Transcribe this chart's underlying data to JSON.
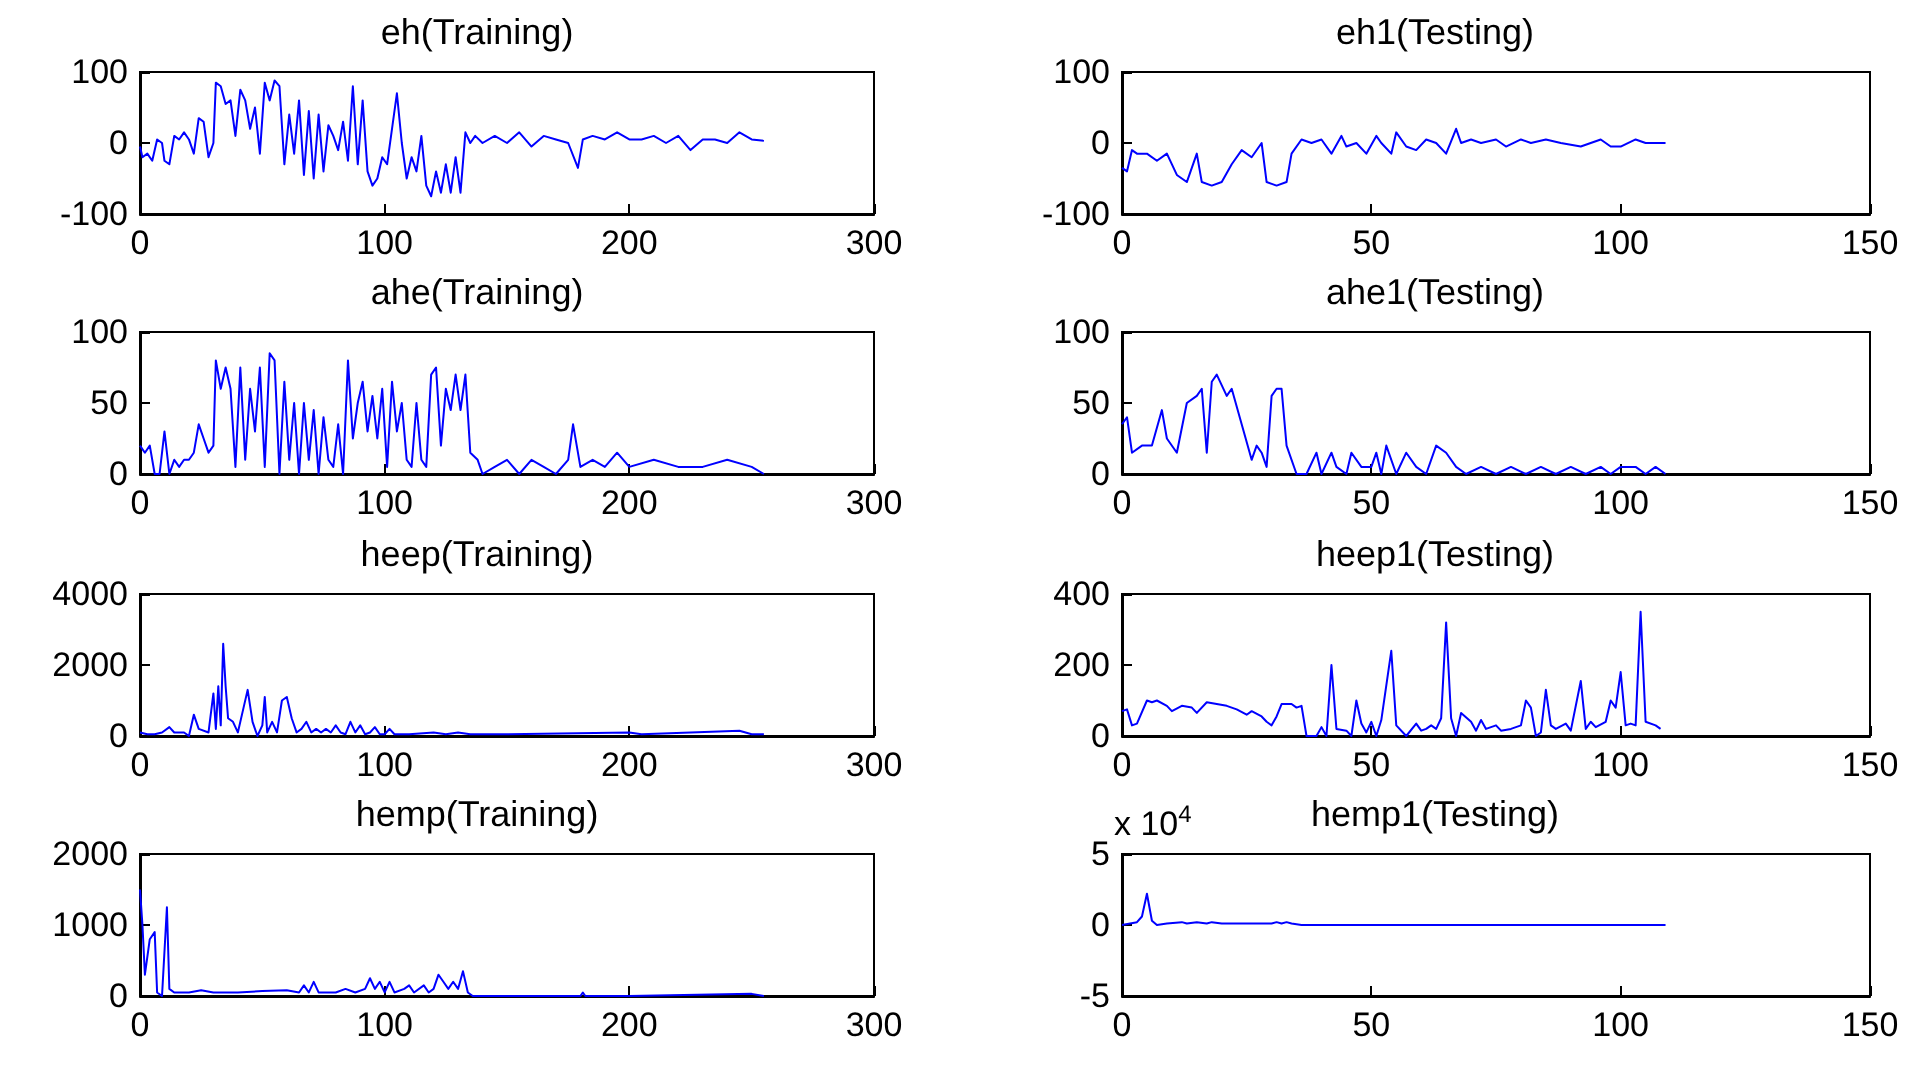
{
  "chart_data": [
    {
      "type": "line",
      "title": "eh(Training)",
      "color": "#0000ff",
      "xlim": [
        0,
        300
      ],
      "xticks": [
        0,
        100,
        200,
        300
      ],
      "ylim": [
        -100,
        100
      ],
      "yticks": [
        -100,
        0,
        100
      ],
      "x": [
        0,
        1,
        3,
        5,
        7,
        9,
        10,
        12,
        14,
        16,
        18,
        20,
        22,
        24,
        26,
        28,
        30,
        31,
        33,
        35,
        37,
        39,
        41,
        43,
        45,
        47,
        49,
        51,
        53,
        55,
        57,
        59,
        61,
        63,
        65,
        67,
        69,
        71,
        73,
        75,
        77,
        79,
        81,
        83,
        85,
        87,
        89,
        91,
        93,
        95,
        97,
        99,
        101,
        103,
        105,
        107,
        109,
        111,
        113,
        115,
        117,
        119,
        121,
        123,
        125,
        127,
        129,
        131,
        133,
        135,
        137,
        140,
        145,
        150,
        155,
        160,
        165,
        170,
        175,
        179,
        181,
        185,
        190,
        195,
        200,
        205,
        210,
        215,
        220,
        225,
        230,
        235,
        240,
        245,
        250,
        255
      ],
      "values": [
        -5,
        -20,
        -15,
        -25,
        5,
        0,
        -25,
        -30,
        10,
        5,
        15,
        5,
        -15,
        35,
        30,
        -20,
        0,
        85,
        80,
        55,
        60,
        10,
        75,
        60,
        20,
        50,
        -15,
        85,
        60,
        88,
        80,
        -30,
        40,
        -15,
        60,
        -45,
        45,
        -50,
        40,
        -40,
        25,
        10,
        -10,
        30,
        -25,
        80,
        -30,
        60,
        -40,
        -60,
        -50,
        -20,
        -30,
        20,
        70,
        0,
        -50,
        -20,
        -40,
        10,
        -60,
        -75,
        -40,
        -70,
        -30,
        -70,
        -20,
        -70,
        15,
        0,
        10,
        0,
        10,
        0,
        15,
        -5,
        10,
        5,
        0,
        -35,
        5,
        10,
        5,
        15,
        5,
        5,
        10,
        0,
        10,
        -10,
        5,
        5,
        0,
        15,
        5,
        3
      ]
    },
    {
      "type": "line",
      "title": "eh1(Testing)",
      "color": "#0000ff",
      "xlim": [
        0,
        150
      ],
      "xticks": [
        0,
        50,
        100,
        150
      ],
      "ylim": [
        -100,
        100
      ],
      "yticks": [
        -100,
        0,
        100
      ],
      "x": [
        0,
        1,
        2,
        3,
        5,
        7,
        9,
        11,
        13,
        15,
        16,
        18,
        20,
        22,
        24,
        26,
        28,
        29,
        31,
        33,
        34,
        36,
        38,
        40,
        42,
        44,
        45,
        47,
        49,
        51,
        52,
        54,
        55,
        57,
        59,
        61,
        63,
        65,
        67,
        68,
        70,
        72,
        75,
        77,
        80,
        82,
        85,
        88,
        92,
        96,
        98,
        100,
        103,
        105,
        107,
        109
      ],
      "values": [
        -35,
        -40,
        -10,
        -15,
        -15,
        -25,
        -15,
        -45,
        -55,
        -15,
        -55,
        -60,
        -55,
        -30,
        -10,
        -20,
        0,
        -55,
        -60,
        -55,
        -15,
        5,
        0,
        5,
        -15,
        10,
        -5,
        0,
        -15,
        10,
        0,
        -15,
        15,
        -5,
        -10,
        5,
        0,
        -15,
        20,
        0,
        5,
        0,
        5,
        -5,
        5,
        0,
        5,
        0,
        -5,
        5,
        -5,
        -5,
        5,
        0,
        0,
        0
      ]
    },
    {
      "type": "line",
      "title": "ahe(Training)",
      "color": "#0000ff",
      "xlim": [
        0,
        300
      ],
      "xticks": [
        0,
        100,
        200,
        300
      ],
      "ylim": [
        0,
        100
      ],
      "yticks": [
        0,
        50,
        100
      ],
      "x": [
        0,
        2,
        4,
        6,
        8,
        10,
        12,
        14,
        16,
        18,
        20,
        22,
        24,
        26,
        28,
        30,
        31,
        33,
        35,
        37,
        39,
        41,
        43,
        45,
        47,
        49,
        51,
        53,
        55,
        57,
        59,
        61,
        63,
        65,
        67,
        69,
        71,
        73,
        75,
        77,
        79,
        81,
        83,
        85,
        87,
        89,
        91,
        93,
        95,
        97,
        99,
        101,
        103,
        105,
        107,
        109,
        111,
        113,
        115,
        117,
        119,
        121,
        123,
        125,
        127,
        129,
        131,
        133,
        135,
        138,
        140,
        145,
        150,
        155,
        160,
        165,
        170,
        175,
        177,
        180,
        185,
        190,
        195,
        200,
        210,
        220,
        230,
        240,
        250,
        255
      ],
      "values": [
        20,
        15,
        20,
        0,
        0,
        30,
        0,
        10,
        5,
        10,
        10,
        15,
        35,
        25,
        15,
        20,
        80,
        60,
        75,
        60,
        5,
        75,
        10,
        60,
        30,
        75,
        5,
        85,
        80,
        0,
        65,
        10,
        50,
        0,
        50,
        10,
        45,
        0,
        40,
        10,
        5,
        35,
        0,
        80,
        25,
        50,
        65,
        30,
        55,
        25,
        60,
        5,
        65,
        30,
        50,
        10,
        5,
        50,
        10,
        5,
        70,
        75,
        20,
        60,
        45,
        70,
        45,
        70,
        15,
        10,
        0,
        5,
        10,
        0,
        10,
        5,
        0,
        10,
        35,
        5,
        10,
        5,
        15,
        5,
        10,
        5,
        5,
        10,
        5,
        0
      ]
    },
    {
      "type": "line",
      "title": "ahe1(Testing)",
      "color": "#0000ff",
      "xlim": [
        0,
        150
      ],
      "xticks": [
        0,
        50,
        100,
        150
      ],
      "ylim": [
        0,
        100
      ],
      "yticks": [
        0,
        50,
        100
      ],
      "x": [
        0,
        1,
        2,
        4,
        6,
        8,
        9,
        11,
        13,
        15,
        16,
        17,
        18,
        19,
        21,
        22,
        24,
        26,
        27,
        28,
        29,
        30,
        31,
        32,
        33,
        35,
        37,
        39,
        40,
        42,
        43,
        45,
        46,
        48,
        50,
        51,
        52,
        53,
        55,
        57,
        59,
        61,
        63,
        65,
        67,
        69,
        72,
        75,
        78,
        81,
        84,
        87,
        90,
        93,
        96,
        98,
        100,
        103,
        105,
        107,
        109
      ],
      "values": [
        35,
        40,
        15,
        20,
        20,
        45,
        25,
        15,
        50,
        55,
        60,
        15,
        65,
        70,
        55,
        60,
        35,
        10,
        20,
        15,
        5,
        55,
        60,
        60,
        20,
        0,
        0,
        15,
        0,
        15,
        5,
        0,
        15,
        5,
        5,
        15,
        0,
        20,
        0,
        15,
        5,
        0,
        20,
        15,
        5,
        0,
        5,
        0,
        5,
        0,
        5,
        0,
        5,
        0,
        5,
        0,
        5,
        5,
        0,
        5,
        0
      ]
    },
    {
      "type": "line",
      "title": "heep(Training)",
      "color": "#0000ff",
      "xlim": [
        0,
        300
      ],
      "xticks": [
        0,
        100,
        200,
        300
      ],
      "ylim": [
        0,
        4000
      ],
      "yticks": [
        0,
        2000,
        4000
      ],
      "x": [
        0,
        3,
        6,
        9,
        12,
        14,
        18,
        20,
        22,
        24,
        28,
        30,
        31,
        32,
        33,
        34,
        35,
        36,
        38,
        40,
        42,
        44,
        46,
        48,
        50,
        51,
        52,
        54,
        56,
        58,
        60,
        62,
        64,
        66,
        68,
        70,
        72,
        74,
        76,
        78,
        80,
        82,
        84,
        86,
        88,
        90,
        92,
        94,
        96,
        98,
        100,
        102,
        104,
        110,
        120,
        125,
        130,
        135,
        150,
        200,
        205,
        245,
        250,
        255
      ],
      "values": [
        100,
        50,
        50,
        100,
        250,
        100,
        100,
        0,
        600,
        200,
        100,
        1200,
        200,
        1400,
        300,
        2600,
        1400,
        500,
        400,
        100,
        700,
        1300,
        400,
        0,
        300,
        1100,
        100,
        400,
        100,
        1000,
        1100,
        500,
        100,
        200,
        400,
        100,
        200,
        100,
        200,
        100,
        300,
        100,
        50,
        400,
        100,
        300,
        50,
        100,
        250,
        50,
        50,
        200,
        50,
        50,
        100,
        50,
        100,
        50,
        50,
        100,
        50,
        150,
        50,
        50
      ]
    },
    {
      "type": "line",
      "title": "heep1(Testing)",
      "color": "#0000ff",
      "xlim": [
        0,
        150
      ],
      "xticks": [
        0,
        50,
        100,
        150
      ],
      "ylim": [
        0,
        400
      ],
      "yticks": [
        0,
        200,
        400
      ],
      "x": [
        0,
        1,
        2,
        3,
        5,
        6,
        7,
        9,
        10,
        12,
        14,
        15,
        17,
        19,
        21,
        23,
        25,
        26,
        28,
        29,
        30,
        31,
        32,
        34,
        35,
        36,
        37,
        39,
        40,
        41,
        42,
        43,
        45,
        46,
        47,
        48,
        49,
        50,
        51,
        52,
        54,
        55,
        57,
        59,
        60,
        61,
        62,
        63,
        64,
        65,
        66,
        67,
        68,
        70,
        71,
        72,
        73,
        75,
        76,
        78,
        80,
        81,
        82,
        83,
        84,
        85,
        86,
        87,
        89,
        90,
        92,
        93,
        94,
        95,
        97,
        98,
        99,
        100,
        101,
        102,
        103,
        104,
        105,
        107,
        108
      ],
      "values": [
        70,
        75,
        30,
        35,
        100,
        95,
        100,
        85,
        70,
        85,
        80,
        65,
        95,
        90,
        85,
        75,
        60,
        70,
        55,
        40,
        30,
        55,
        90,
        90,
        80,
        85,
        0,
        0,
        25,
        0,
        200,
        20,
        15,
        0,
        100,
        35,
        10,
        40,
        0,
        45,
        240,
        30,
        0,
        35,
        15,
        20,
        30,
        20,
        50,
        320,
        50,
        0,
        65,
        40,
        15,
        45,
        20,
        30,
        15,
        20,
        30,
        100,
        80,
        0,
        10,
        130,
        30,
        20,
        35,
        15,
        155,
        20,
        40,
        25,
        40,
        100,
        80,
        180,
        30,
        35,
        30,
        350,
        40,
        30,
        20
      ]
    },
    {
      "type": "line",
      "title": "hemp(Training)",
      "color": "#0000ff",
      "xlim": [
        0,
        300
      ],
      "xticks": [
        0,
        100,
        200,
        300
      ],
      "ylim": [
        0,
        2000
      ],
      "yticks": [
        0,
        1000,
        2000
      ],
      "x": [
        0,
        1,
        2,
        4,
        6,
        7,
        9,
        11,
        12,
        14,
        20,
        25,
        30,
        40,
        50,
        60,
        65,
        67,
        69,
        71,
        73,
        80,
        84,
        88,
        92,
        94,
        96,
        98,
        100,
        102,
        104,
        108,
        110,
        112,
        116,
        118,
        120,
        122,
        124,
        126,
        128,
        130,
        132,
        134,
        136,
        140,
        180,
        181,
        182,
        200,
        250,
        255
      ],
      "values": [
        1500,
        1000,
        300,
        800,
        900,
        50,
        0,
        1250,
        100,
        50,
        50,
        80,
        50,
        50,
        70,
        80,
        50,
        150,
        50,
        200,
        50,
        50,
        100,
        50,
        100,
        250,
        100,
        200,
        50,
        200,
        50,
        100,
        150,
        50,
        150,
        50,
        100,
        300,
        200,
        100,
        200,
        100,
        350,
        50,
        0,
        0,
        0,
        50,
        0,
        0,
        30,
        0
      ]
    },
    {
      "type": "line",
      "title": "hemp1(Testing)",
      "color": "#0000ff",
      "xlim": [
        0,
        150
      ],
      "xticks": [
        0,
        50,
        100,
        150
      ],
      "ylim": [
        -5,
        5
      ],
      "yticks": [
        -5,
        0,
        5
      ],
      "annotations": [
        "x 10$^{4}$"
      ],
      "x": [
        0,
        3,
        4,
        5,
        6,
        7,
        9,
        12,
        13,
        15,
        17,
        18,
        20,
        22,
        30,
        31,
        32,
        33,
        34,
        36,
        109
      ],
      "values": [
        0,
        0.2,
        0.6,
        2.2,
        0.3,
        0,
        0.1,
        0.2,
        0.1,
        0.2,
        0.1,
        0.2,
        0.1,
        0.1,
        0.1,
        0.2,
        0.1,
        0.2,
        0.1,
        0,
        0
      ]
    }
  ]
}
